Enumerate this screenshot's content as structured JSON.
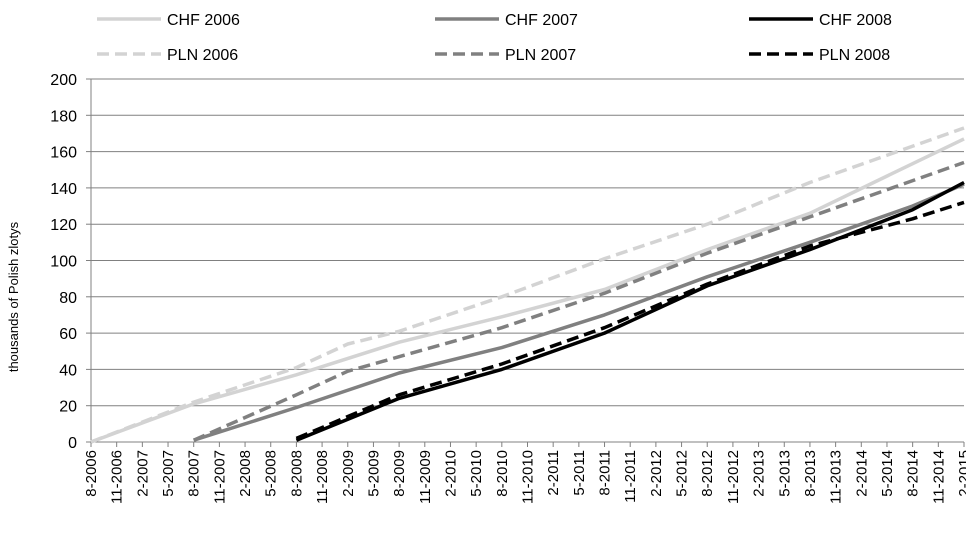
{
  "chart_data": {
    "type": "line",
    "title": "",
    "xlabel": "",
    "ylabel": "thousands of Polish zlotys",
    "ylim": [
      0,
      200
    ],
    "yticks": [
      0,
      20,
      40,
      60,
      80,
      100,
      120,
      140,
      160,
      180,
      200
    ],
    "grid": true,
    "legend_position": "top",
    "x_ticks": [
      "8-2006",
      "11-2006",
      "2-2007",
      "5-2007",
      "8-2007",
      "11-2007",
      "2-2008",
      "5-2008",
      "8-2008",
      "11-2008",
      "2-2009",
      "5-2009",
      "8-2009",
      "11-2009",
      "2-2010",
      "5-2010",
      "8-2010",
      "11-2010",
      "2-2011",
      "5-2011",
      "8-2011",
      "11-2011",
      "2-2012",
      "5-2012",
      "8-2012",
      "11-2012",
      "2-2013",
      "5-2013",
      "8-2013",
      "11-2013",
      "2-2014",
      "5-2014",
      "8-2014",
      "11-2014",
      "2-2015"
    ],
    "series": [
      {
        "name": "CHF 2006",
        "color": "#d3d3d3",
        "dash": "solid",
        "x": [
          0,
          4,
          8,
          12,
          16,
          20,
          24,
          28,
          34
        ],
        "y": [
          0,
          21,
          37,
          55,
          69,
          84,
          106,
          126,
          167
        ]
      },
      {
        "name": "CHF 2007",
        "color": "#808080",
        "dash": "solid",
        "x": [
          4,
          8,
          12,
          16,
          20,
          24,
          28,
          32,
          34
        ],
        "y": [
          1,
          19,
          38,
          52,
          70,
          91,
          110,
          130,
          142
        ]
      },
      {
        "name": "CHF 2008",
        "color": "#000000",
        "dash": "solid",
        "x": [
          8,
          12,
          16,
          20,
          24,
          28,
          32,
          34
        ],
        "y": [
          1,
          24,
          40,
          60,
          86,
          106,
          128,
          143
        ]
      },
      {
        "name": "PLN 2006",
        "color": "#d3d3d3",
        "dash": "dashed",
        "x": [
          0,
          4,
          8,
          10,
          12,
          16,
          20,
          24,
          28,
          34
        ],
        "y": [
          0,
          22,
          41,
          54,
          61,
          80,
          101,
          120,
          143,
          173
        ]
      },
      {
        "name": "PLN 2007",
        "color": "#808080",
        "dash": "dashed",
        "x": [
          4,
          8,
          10,
          12,
          16,
          20,
          24,
          28,
          34
        ],
        "y": [
          1,
          26,
          39,
          47,
          63,
          82,
          104,
          124,
          154
        ]
      },
      {
        "name": "PLN 2008",
        "color": "#000000",
        "dash": "dashed",
        "x": [
          8,
          12,
          16,
          20,
          24,
          28,
          32,
          34
        ],
        "y": [
          2,
          26,
          43,
          63,
          87,
          108,
          123,
          132
        ]
      }
    ]
  }
}
